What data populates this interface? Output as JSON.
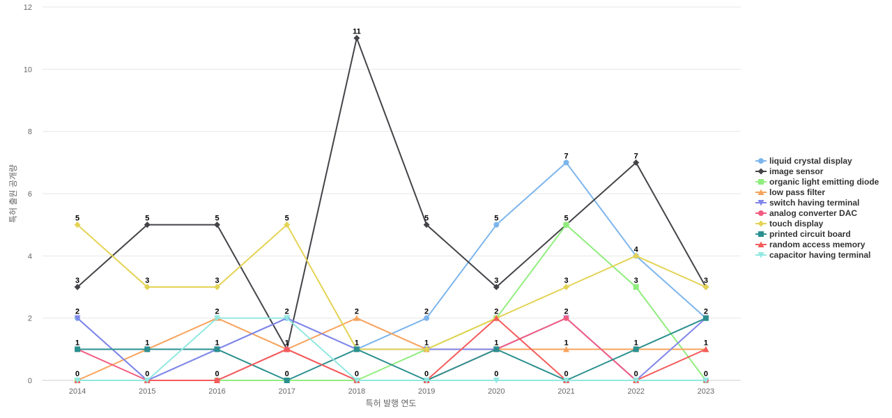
{
  "chart_data": {
    "type": "line",
    "categories": [
      "2014",
      "2015",
      "2016",
      "2017",
      "2018",
      "2019",
      "2020",
      "2021",
      "2022",
      "2023"
    ],
    "xlabel": "특허 발행 연도",
    "ylabel": "특허 출원 공개량",
    "ylim": [
      0,
      12
    ],
    "yticks": [
      0,
      2,
      4,
      6,
      8,
      10,
      12
    ],
    "grid": true,
    "legend_position": "right",
    "series": [
      {
        "name": "liquid crystal display",
        "color": "#7cb5ec",
        "marker": "circle",
        "values": [
          2,
          0,
          1,
          2,
          1,
          2,
          5,
          7,
          4,
          2
        ]
      },
      {
        "name": "image sensor",
        "color": "#434348",
        "marker": "diamond",
        "values": [
          3,
          5,
          5,
          1,
          11,
          5,
          3,
          5,
          7,
          3
        ]
      },
      {
        "name": "organic light emitting diode",
        "color": "#90ed7d",
        "marker": "square",
        "values": [
          0,
          0,
          0,
          0,
          0,
          1,
          2,
          5,
          3,
          0
        ]
      },
      {
        "name": "low pass filter",
        "color": "#f7a35c",
        "marker": "triangle",
        "values": [
          0,
          1,
          2,
          1,
          2,
          1,
          1,
          1,
          1,
          1
        ]
      },
      {
        "name": "switch having terminal",
        "color": "#8085e9",
        "marker": "triangle-down",
        "values": [
          2,
          0,
          1,
          2,
          1,
          1,
          1,
          2,
          0,
          2
        ]
      },
      {
        "name": "analog converter DAC",
        "color": "#f15c80",
        "marker": "circle",
        "values": [
          1,
          0,
          0,
          1,
          0,
          0,
          1,
          2,
          0,
          0
        ]
      },
      {
        "name": "touch display",
        "color": "#e4d354",
        "marker": "diamond",
        "values": [
          5,
          3,
          3,
          5,
          1,
          1,
          2,
          3,
          4,
          3
        ]
      },
      {
        "name": "printed circuit board",
        "color": "#2b908f",
        "marker": "square",
        "values": [
          1,
          1,
          1,
          0,
          1,
          0,
          1,
          0,
          1,
          2
        ]
      },
      {
        "name": "random access memory",
        "color": "#f45b5b",
        "marker": "triangle",
        "values": [
          0,
          0,
          0,
          1,
          0,
          0,
          2,
          0,
          0,
          1
        ]
      },
      {
        "name": "capacitor having terminal",
        "color": "#91e8e1",
        "marker": "triangle-down",
        "values": [
          0,
          0,
          2,
          2,
          0,
          0,
          0,
          0,
          0,
          0
        ]
      }
    ],
    "data_labels": [
      {
        "x": "2014",
        "values": [
          0,
          1,
          2,
          3,
          5
        ]
      },
      {
        "x": "2015",
        "values": [
          0,
          1,
          3,
          5
        ]
      },
      {
        "x": "2016",
        "values": [
          0,
          1,
          2,
          3,
          5
        ]
      },
      {
        "x": "2017",
        "values": [
          0,
          1,
          2,
          5
        ]
      },
      {
        "x": "2018",
        "values": [
          0,
          1,
          2,
          11
        ]
      },
      {
        "x": "2019",
        "values": [
          0,
          1,
          2,
          5
        ]
      },
      {
        "x": "2020",
        "values": [
          0,
          1,
          2,
          3,
          5
        ]
      },
      {
        "x": "2021",
        "values": [
          0,
          1,
          2,
          3,
          5,
          7
        ]
      },
      {
        "x": "2022",
        "values": [
          0,
          1,
          3,
          4,
          7
        ]
      },
      {
        "x": "2023",
        "values": [
          0,
          1,
          2,
          3
        ]
      }
    ]
  }
}
